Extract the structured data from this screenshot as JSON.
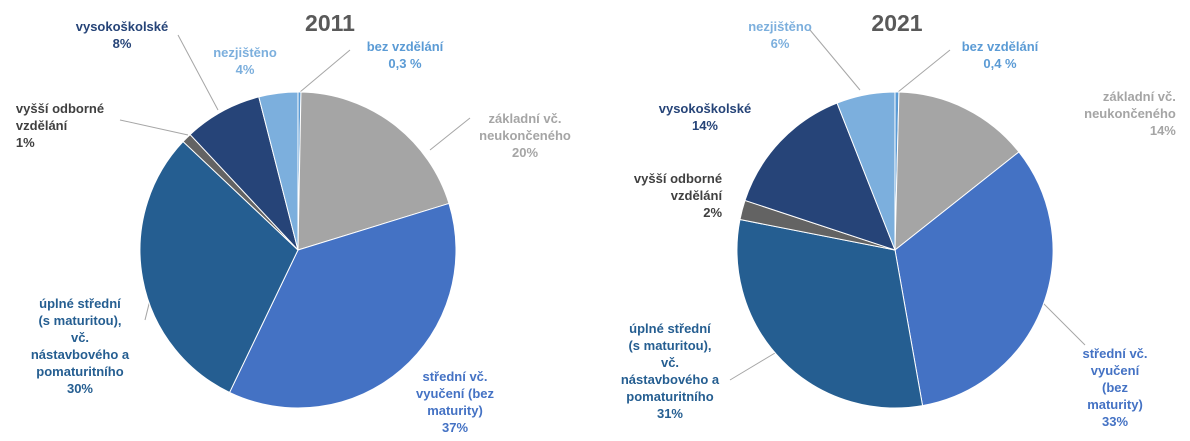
{
  "chart_data": [
    {
      "type": "pie",
      "title": "2011",
      "categories": [
        "bez vzdělání",
        "základní vč.\nneukončeného",
        "střední vč.\nvyučení (bez\nmaturity)",
        "úplné střední\n(s maturitou),\nvč.\nnástavbového a\npomaturitního",
        "vyšší odborné\nvzdělání",
        "vysokoškolské",
        "nezjištěno"
      ],
      "values": [
        0.3,
        20,
        37,
        30,
        1,
        8,
        4
      ],
      "value_labels": [
        "0,3 %",
        "20%",
        "37%",
        "30%",
        "1%",
        "8%",
        "4%"
      ],
      "colors": [
        "#5b9bd5",
        "#a5a5a5",
        "#4472c4",
        "#255e91",
        "#636363",
        "#264478",
        "#7cafdd"
      ]
    },
    {
      "type": "pie",
      "title": "2021",
      "categories": [
        "bez vzdělání",
        "základní vč.\nneukončeného",
        "střední vč.\nvyučení (bez\nmaturity)",
        "úplné střední\n(s maturitou),\nvč.\nnástavbového a\npomaturitního",
        "vyšší odborné\nvzdělání",
        "vysokoškolské",
        "nezjištěno"
      ],
      "values": [
        0.4,
        14,
        33,
        31,
        2,
        14,
        6
      ],
      "value_labels": [
        "0,4 %",
        "14%",
        "33%",
        "31%",
        "2%",
        "14%",
        "6%"
      ],
      "colors": [
        "#5b9bd5",
        "#a5a5a5",
        "#4472c4",
        "#255e91",
        "#636363",
        "#264478",
        "#7cafdd"
      ]
    }
  ]
}
